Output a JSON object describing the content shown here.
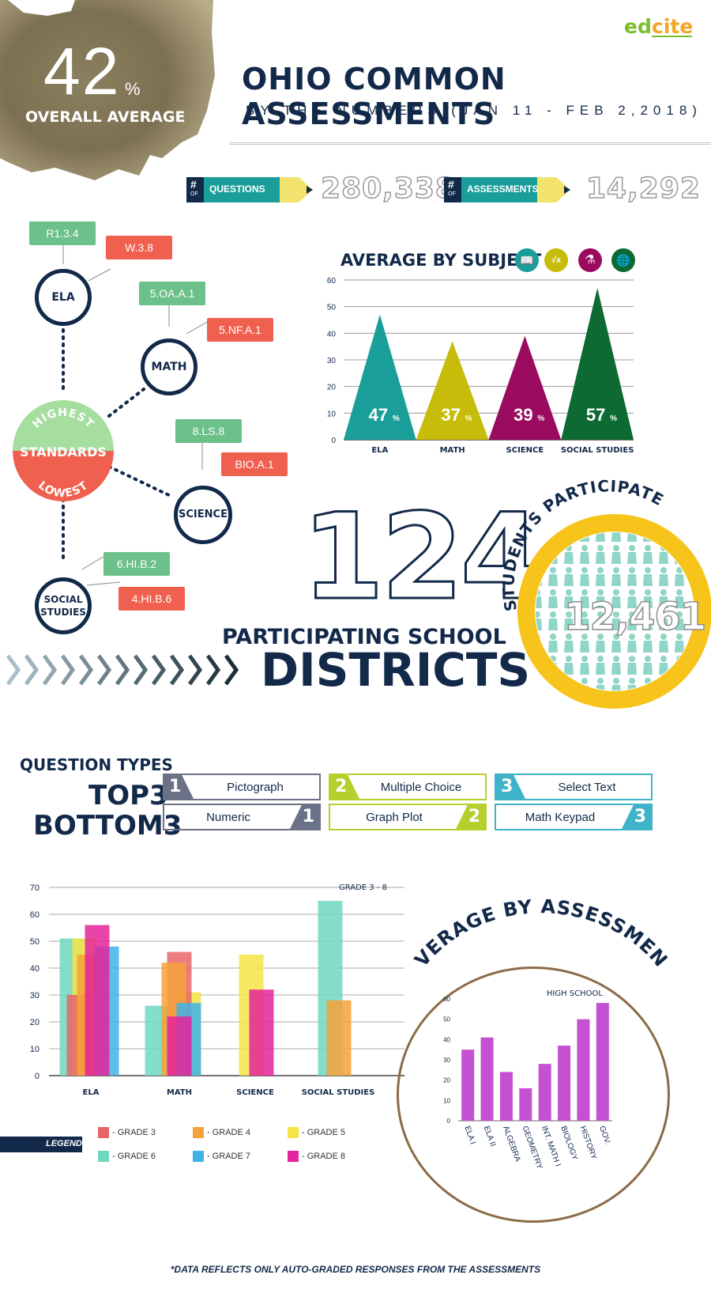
{
  "header": {
    "overall_value": "42",
    "overall_pct": "%",
    "overall_label": "OVERALL AVERAGE",
    "logo": "edcite",
    "title": "OHIO COMMON ASSESSMENTS",
    "subtitle": "BY THE NUMBERS (JAN 11 - FEB 2,2018)"
  },
  "counters": {
    "hash": "#",
    "of": "OF",
    "questions_label": "QUESTIONS",
    "questions_value": "280,338",
    "assessments_label": "ASSESSMENTS",
    "assessments_value": "14,292"
  },
  "standards": {
    "center_top": "HIGHEST",
    "center_mid": "STANDARDS",
    "center_bottom": "LOWEST",
    "nodes": [
      {
        "name": "ELA",
        "highest": "R1.3.4",
        "lowest": "W.3.8"
      },
      {
        "name": "MATH",
        "highest": "5.OA.A.1",
        "lowest": "5.NF.A.1"
      },
      {
        "name": "SCIENCE",
        "highest": "8.LS.8",
        "lowest": "BIO.A.1"
      },
      {
        "name": "SOCIAL STUDIES",
        "name_line1": "SOCIAL",
        "name_line2": "STUDIES",
        "highest": "6.HI.B.2",
        "lowest": "4.HI.B.6"
      }
    ]
  },
  "subject_chart_title": "AVERAGE BY SUBJECT",
  "icons": [
    "book-icon",
    "square-root-icon",
    "flask-icon",
    "globe-icon"
  ],
  "icon_glyphs": [
    "📖",
    "√x",
    "⚗",
    "🌐"
  ],
  "districts": {
    "number": "124",
    "line1": "PARTICIPATING SCHOOL",
    "line2": "DISTRICTS"
  },
  "students": {
    "label": "STUDENTS PARTICIPATED",
    "value": "12,461"
  },
  "question_types": {
    "title": "QUESTION TYPES",
    "top_label": "TOP3",
    "bottom_label": "BOTTOM3",
    "items": [
      {
        "rank": "1",
        "top": "Pictograph",
        "bottom": "Numeric",
        "color": "#6b7187"
      },
      {
        "rank": "2",
        "top": "Multiple Choice",
        "bottom": "Graph Plot",
        "color": "#b5cf2c"
      },
      {
        "rank": "3",
        "top": "Select Text",
        "bottom": "Math Keypad",
        "color": "#3fb3c9"
      }
    ]
  },
  "grade_chart_note": "GRADE 3 - 8",
  "assessment_title": "AVERAGE BY ASSESSMENT",
  "hs_chart_note": "HIGH SCHOOL",
  "legend": {
    "title": "LEGEND",
    "items": [
      {
        "label": "- GRADE 3",
        "color": "#e8666a"
      },
      {
        "label": "- GRADE 4",
        "color": "#f6a23a"
      },
      {
        "label": "- GRADE 5",
        "color": "#f5e447"
      },
      {
        "label": "- GRADE 6",
        "color": "#6fd8bf"
      },
      {
        "label": "- GRADE 7",
        "color": "#3fb3e8"
      },
      {
        "label": "- GRADE 8",
        "color": "#e5239a"
      }
    ]
  },
  "footnote": "*DATA REFLECTS ONLY AUTO-GRADED RESPONSES FROM THE ASSESSMENTS",
  "chart_data": [
    {
      "type": "area",
      "title": "AVERAGE BY SUBJECT",
      "categories": [
        "ELA",
        "MATH",
        "SCIENCE",
        "SOCIAL STUDIES"
      ],
      "values": [
        47,
        37,
        39,
        57
      ],
      "data_labels": [
        "47",
        "37",
        "39",
        "57"
      ],
      "label_unit": "%",
      "colors": [
        "#1a9e9a",
        "#c7bc0a",
        "#9a0a5e",
        "#0c6a32"
      ],
      "ylim": [
        0,
        60
      ],
      "yticks": [
        0,
        10,
        20,
        30,
        40,
        50,
        60
      ],
      "grid": true
    },
    {
      "type": "bar",
      "title": "GRADE 3 - 8",
      "categories": [
        "ELA",
        "MATH",
        "SCIENCE",
        "SOCIAL STUDIES"
      ],
      "series": [
        {
          "name": "GRADE 3",
          "color": "#e8666a",
          "values": [
            30,
            46,
            null,
            null
          ]
        },
        {
          "name": "GRADE 4",
          "color": "#f6a23a",
          "values": [
            45,
            42,
            null,
            28
          ]
        },
        {
          "name": "GRADE 5",
          "color": "#f5e447",
          "values": [
            51,
            31,
            45,
            null
          ]
        },
        {
          "name": "GRADE 6",
          "color": "#6fd8bf",
          "values": [
            51,
            26,
            null,
            65
          ]
        },
        {
          "name": "GRADE 7",
          "color": "#3fb3e8",
          "values": [
            48,
            27,
            null,
            null
          ]
        },
        {
          "name": "GRADE 8",
          "color": "#e5239a",
          "values": [
            56,
            22,
            32,
            null
          ]
        }
      ],
      "ylim": [
        0,
        70
      ],
      "yticks": [
        0,
        10,
        20,
        30,
        40,
        50,
        60,
        70
      ],
      "grid": true,
      "legend": "bottom"
    },
    {
      "type": "bar",
      "title": "HIGH SCHOOL",
      "categories": [
        "ELA I",
        "ELA II",
        "ALGEBRA",
        "GEOMETRY",
        "INT. MATH I",
        "BIOLOGY",
        "HISTORY",
        "GOV."
      ],
      "values": [
        35,
        41,
        24,
        16,
        28,
        37,
        50,
        58
      ],
      "color": "#c450d2",
      "ylim": [
        0,
        60
      ],
      "yticks": [
        0,
        10,
        20,
        30,
        40,
        50,
        60
      ],
      "grid": false
    }
  ]
}
